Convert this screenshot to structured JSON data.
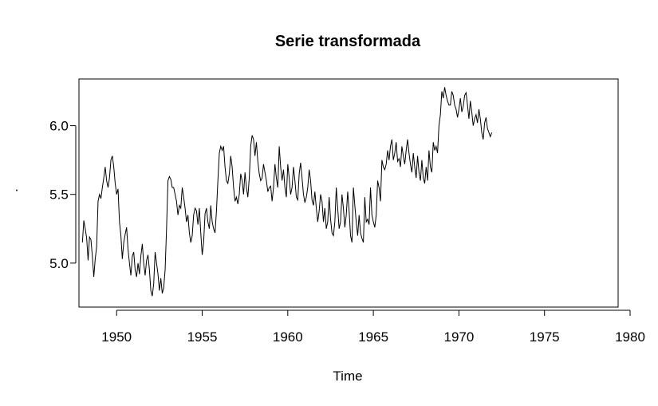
{
  "chart_data": {
    "type": "line",
    "title": "Serie transformada",
    "xlabel": "Time",
    "ylabel": "",
    "xlim": [
      1947.8,
      1979.3
    ],
    "ylim": [
      4.68,
      6.34
    ],
    "x_ticks": [
      1950,
      1955,
      1960,
      1965,
      1970,
      1975,
      1980
    ],
    "y_ticks": [
      5.0,
      5.5,
      6.0
    ],
    "x_tick_labels": [
      "1950",
      "1955",
      "1960",
      "1965",
      "1970",
      "1975",
      "1980"
    ],
    "y_tick_labels": [
      "5.0",
      "5.5",
      "6.0"
    ],
    "grid": false,
    "legend": "none",
    "line_color": "#000000",
    "start_year": 1948,
    "frequency": 12,
    "series": [
      {
        "values": [
          5.15,
          5.31,
          5.25,
          5.18,
          5.02,
          5.19,
          5.17,
          5.05,
          4.9,
          5.03,
          5.12,
          5.45,
          5.5,
          5.47,
          5.55,
          5.62,
          5.7,
          5.6,
          5.55,
          5.62,
          5.75,
          5.78,
          5.7,
          5.58,
          5.5,
          5.54,
          5.3,
          5.2,
          5.03,
          5.15,
          5.21,
          5.26,
          5.1,
          5.0,
          4.91,
          5.05,
          5.08,
          4.95,
          4.9,
          5.0,
          4.92,
          5.05,
          5.14,
          5.0,
          4.91,
          5.02,
          5.06,
          4.95,
          4.8,
          4.76,
          4.85,
          5.08,
          5.0,
          4.92,
          4.8,
          4.89,
          4.78,
          4.82,
          4.95,
          5.25,
          5.6,
          5.63,
          5.61,
          5.55,
          5.55,
          5.5,
          5.45,
          5.35,
          5.42,
          5.4,
          5.55,
          5.48,
          5.4,
          5.3,
          5.35,
          5.22,
          5.15,
          5.2,
          5.35,
          5.4,
          5.38,
          5.28,
          5.4,
          5.22,
          5.06,
          5.15,
          5.36,
          5.4,
          5.3,
          5.25,
          5.42,
          5.3,
          5.25,
          5.22,
          5.38,
          5.6,
          5.8,
          5.85,
          5.82,
          5.85,
          5.7,
          5.6,
          5.58,
          5.65,
          5.78,
          5.7,
          5.55,
          5.45,
          5.48,
          5.43,
          5.5,
          5.65,
          5.6,
          5.5,
          5.66,
          5.55,
          5.48,
          5.62,
          5.85,
          5.93,
          5.9,
          5.78,
          5.88,
          5.74,
          5.65,
          5.6,
          5.62,
          5.72,
          5.66,
          5.6,
          5.52,
          5.55,
          5.56,
          5.45,
          5.55,
          5.72,
          5.62,
          5.55,
          5.85,
          5.7,
          5.6,
          5.68,
          5.55,
          5.48,
          5.72,
          5.62,
          5.5,
          5.55,
          5.7,
          5.6,
          5.48,
          5.46,
          5.65,
          5.73,
          5.62,
          5.5,
          5.44,
          5.48,
          5.55,
          5.68,
          5.6,
          5.46,
          5.42,
          5.52,
          5.4,
          5.3,
          5.38,
          5.5,
          5.45,
          5.3,
          5.4,
          5.25,
          5.3,
          5.48,
          5.32,
          5.22,
          5.2,
          5.3,
          5.55,
          5.4,
          5.25,
          5.3,
          5.5,
          5.4,
          5.26,
          5.35,
          5.52,
          5.38,
          5.2,
          5.15,
          5.55,
          5.42,
          5.3,
          5.2,
          5.35,
          5.22,
          5.18,
          5.15,
          5.48,
          5.3,
          5.32,
          5.28,
          5.55,
          5.35,
          5.3,
          5.26,
          5.35,
          5.6,
          5.55,
          5.45,
          5.75,
          5.7,
          5.68,
          5.72,
          5.82,
          5.75,
          5.85,
          5.9,
          5.75,
          5.8,
          5.88,
          5.74,
          5.76,
          5.7,
          5.85,
          5.78,
          5.72,
          5.82,
          5.9,
          5.8,
          5.72,
          5.66,
          5.8,
          5.7,
          5.62,
          5.78,
          5.66,
          5.6,
          5.75,
          5.62,
          5.58,
          5.7,
          5.6,
          5.82,
          5.7,
          5.66,
          5.88,
          5.82,
          5.85,
          5.8,
          6.0,
          6.08,
          6.25,
          6.2,
          6.28,
          6.22,
          6.18,
          6.15,
          6.15,
          6.25,
          6.22,
          6.15,
          6.12,
          6.06,
          6.12,
          6.2,
          6.1,
          6.14,
          6.22,
          6.24,
          6.15,
          6.05,
          6.18,
          6.1,
          6.0,
          6.05,
          6.08,
          6.02,
          6.12,
          6.05,
          5.95,
          5.9,
          6.02,
          6.06,
          5.98,
          5.95,
          5.92,
          5.95
        ]
      }
    ]
  }
}
